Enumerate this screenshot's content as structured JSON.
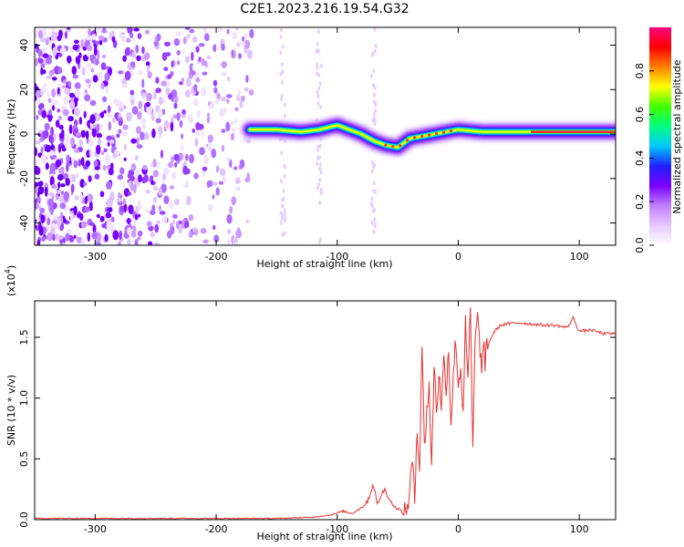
{
  "title": "C2E1.2023.216.19.54.G32",
  "chart_data": [
    {
      "type": "heatmap",
      "xlabel": "Height of straight line (km)",
      "ylabel": "Frequency (Hz)",
      "xlim": [
        -350,
        130
      ],
      "ylim": [
        -50,
        48
      ],
      "x_ticks": [
        -300,
        -200,
        -100,
        0,
        100
      ],
      "y_ticks": [
        -40,
        -20,
        0,
        20,
        40
      ],
      "colorbar": {
        "label": "Normalized spectral amplitude",
        "range": [
          0,
          1
        ],
        "ticks": [
          0.0,
          0.2,
          0.4,
          0.6,
          0.8
        ],
        "colors": [
          "#ffffff",
          "#e6c8ff",
          "#c080ff",
          "#7a00ff",
          "#2020ff",
          "#00c8ff",
          "#00ff80",
          "#40ff00",
          "#ffff00",
          "#ff8000",
          "#ff0000",
          "#ff0080"
        ]
      },
      "ridge": {
        "x": [
          -172,
          -150,
          -130,
          -115,
          -100,
          -90,
          -80,
          -70,
          -60,
          -50,
          -40,
          -30,
          -20,
          -10,
          0,
          20,
          40,
          60,
          80,
          100,
          130
        ],
        "y": [
          2,
          2,
          1,
          2,
          4,
          2,
          0,
          -3,
          -5,
          -6,
          -2,
          -1,
          0,
          1,
          2,
          1,
          1,
          1,
          1,
          1,
          1
        ]
      },
      "noise_region": {
        "x_from": -350,
        "x_to": -170
      }
    },
    {
      "type": "line",
      "xlabel": "Height of straight line (km)",
      "ylabel": "SNR (10 * v/v)",
      "multiplier_label": "(x10",
      "multiplier_exp": "4",
      "multiplier_close": ")",
      "xlim": [
        -350,
        130
      ],
      "ylim": [
        0,
        1.8
      ],
      "x_ticks": [
        -300,
        -200,
        -100,
        0,
        100
      ],
      "y_ticks": [
        0.0,
        0.5,
        1.0,
        1.5
      ],
      "series": [
        {
          "color": "#e83030",
          "x": [
            -350,
            -250,
            -150,
            -120,
            -105,
            -95,
            -88,
            -80,
            -75,
            -70,
            -67,
            -64,
            -60,
            -56,
            -52,
            -48,
            -45,
            -42,
            -40,
            -38,
            -36,
            -34,
            -32,
            -30,
            -28,
            -26,
            -24,
            -22,
            -20,
            -18,
            -16,
            -14,
            -12,
            -10,
            -8,
            -6,
            -4,
            -2,
            0,
            2,
            4,
            6,
            8,
            10,
            12,
            14,
            16,
            18,
            20,
            25,
            30,
            35,
            40,
            50,
            60,
            70,
            80,
            90,
            95,
            100,
            110,
            120,
            130
          ],
          "y": [
            0.01,
            0.01,
            0.01,
            0.02,
            0.04,
            0.07,
            0.05,
            0.1,
            0.15,
            0.3,
            0.12,
            0.2,
            0.25,
            0.15,
            0.1,
            0.08,
            0.04,
            0.1,
            0.25,
            0.5,
            0.15,
            0.8,
            0.4,
            1.45,
            0.6,
            0.9,
            1.1,
            0.4,
            1.3,
            0.9,
            1.2,
            0.95,
            1.3,
            1.1,
            1.4,
            0.8,
            1.2,
            1.5,
            1.1,
            1.25,
            0.9,
            1.6,
            1.1,
            1.78,
            0.55,
            1.5,
            1.7,
            1.35,
            1.25,
            1.45,
            1.55,
            1.6,
            1.61,
            1.62,
            1.61,
            1.6,
            1.6,
            1.58,
            1.66,
            1.55,
            1.56,
            1.53,
            1.53
          ]
        }
      ]
    }
  ]
}
